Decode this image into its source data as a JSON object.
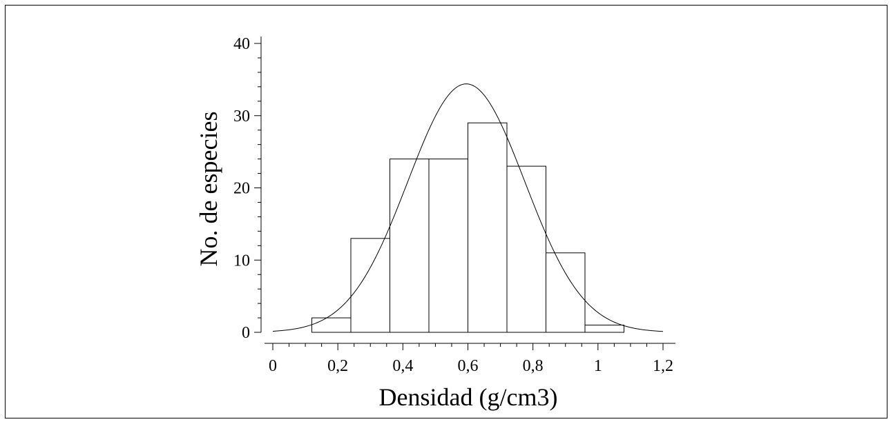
{
  "chart_data": {
    "type": "bar",
    "xlabel": "Densidad (g/cm3)",
    "ylabel": "No. de especies",
    "xlim": [
      0,
      1.2
    ],
    "ylim": [
      0,
      40
    ],
    "x_ticks": [
      0,
      0.2,
      0.4,
      0.6,
      0.8,
      1,
      1.2
    ],
    "x_tick_labels": [
      "0",
      "0,2",
      "0,4",
      "0,6",
      "0,8",
      "1",
      "1,2"
    ],
    "y_ticks": [
      0,
      10,
      20,
      30,
      40
    ],
    "y_tick_labels": [
      "0",
      "10",
      "20",
      "30",
      "40"
    ],
    "bins": [
      {
        "start": 0.12,
        "end": 0.24,
        "count": 2
      },
      {
        "start": 0.24,
        "end": 0.36,
        "count": 13
      },
      {
        "start": 0.36,
        "end": 0.48,
        "count": 24
      },
      {
        "start": 0.48,
        "end": 0.6,
        "count": 24
      },
      {
        "start": 0.6,
        "end": 0.72,
        "count": 29
      },
      {
        "start": 0.72,
        "end": 0.84,
        "count": 23
      },
      {
        "start": 0.84,
        "end": 0.96,
        "count": 11
      },
      {
        "start": 0.96,
        "end": 1.08,
        "count": 1
      }
    ],
    "normal_curve": {
      "mean": 0.595,
      "sd": 0.18,
      "peak": 34.4
    },
    "grid": false,
    "legend": "none"
  }
}
